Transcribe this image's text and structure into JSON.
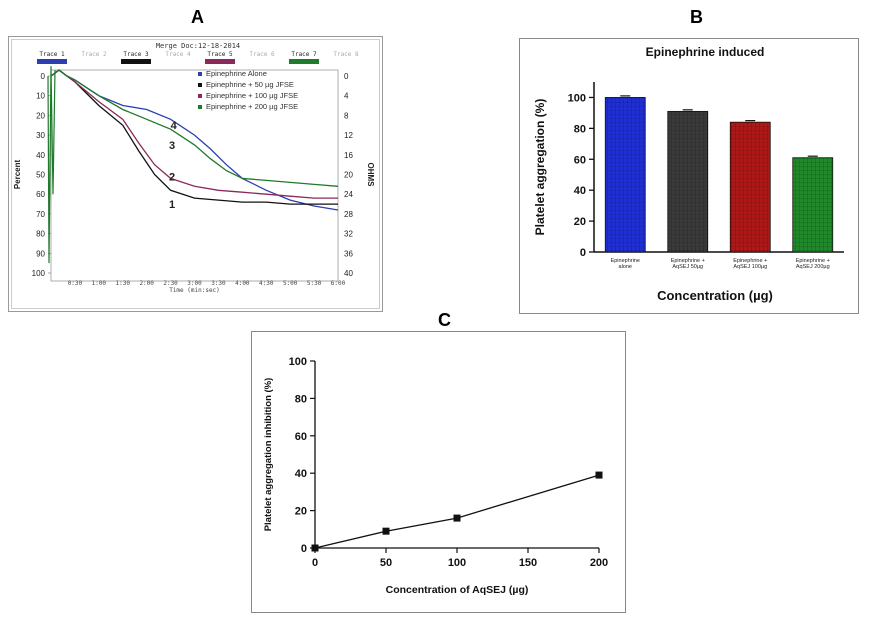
{
  "panels": {
    "a": {
      "letter": "A"
    },
    "b": {
      "letter": "B"
    },
    "c": {
      "letter": "C"
    }
  },
  "chart_data": [
    {
      "type": "line",
      "panel": "A",
      "header": "Merge Doc:12-18-2014",
      "trace_tabs": [
        {
          "label": "Trace 1",
          "active": true,
          "color": "#2b3fb0"
        },
        {
          "label": "Trace 2",
          "active": false,
          "color": ""
        },
        {
          "label": "Trace 3",
          "active": true,
          "color": "#111111"
        },
        {
          "label": "Trace 4",
          "active": false,
          "color": ""
        },
        {
          "label": "Trace 5",
          "active": true,
          "color": "#8a2a5a"
        },
        {
          "label": "Trace 6",
          "active": false,
          "color": ""
        },
        {
          "label": "Trace 7",
          "active": true,
          "color": "#1f7a2a"
        },
        {
          "label": "Trace 8",
          "active": false,
          "color": ""
        }
      ],
      "ylabel": "Percent",
      "ylabel_right": "OHMS",
      "xlabel": "Time (min:sec)",
      "y_ticks": [
        "0",
        "10",
        "20",
        "30",
        "40",
        "50",
        "60",
        "70",
        "80",
        "90",
        "100"
      ],
      "y_right_ticks": [
        "0",
        "4",
        "8",
        "12",
        "16",
        "20",
        "24",
        "28",
        "32",
        "36",
        "40"
      ],
      "x_ticks": [
        "0:30",
        "1:00",
        "1:30",
        "2:00",
        "2:30",
        "3:00",
        "3:30",
        "4:00",
        "4:30",
        "5:00",
        "5:30",
        "6:00"
      ],
      "xlim_sec": [
        0,
        360
      ],
      "ylim": [
        0,
        100
      ],
      "legend_position": "top-right",
      "series": [
        {
          "name": "Epinephrine Alone",
          "color": "#2b3fb0",
          "marker": "4",
          "t": [
            0,
            10,
            20,
            30,
            60,
            90,
            120,
            150,
            180,
            200,
            220,
            240,
            270,
            300,
            330,
            360
          ],
          "y": [
            0,
            -3,
            0,
            2,
            10,
            15,
            17,
            22,
            30,
            37,
            45,
            52,
            58,
            63,
            66,
            68
          ]
        },
        {
          "name": "Epinephrine + 50 µg JFSE",
          "color": "#111111",
          "marker": "1",
          "t": [
            0,
            10,
            20,
            30,
            60,
            90,
            110,
            130,
            150,
            180,
            210,
            240,
            270,
            300,
            330,
            360
          ],
          "y": [
            0,
            -3,
            0,
            3,
            15,
            25,
            38,
            50,
            58,
            62,
            63,
            64,
            64,
            65,
            65,
            65
          ]
        },
        {
          "name": "Epinephrine + 100 µg JFSE",
          "color": "#8a2a5a",
          "marker": "2",
          "t": [
            0,
            10,
            20,
            30,
            60,
            90,
            110,
            130,
            150,
            180,
            210,
            240,
            270,
            300,
            330,
            360
          ],
          "y": [
            0,
            -3,
            0,
            3,
            13,
            22,
            34,
            45,
            52,
            56,
            58,
            59,
            60,
            61,
            62,
            62
          ]
        },
        {
          "name": "Epinephrine + 200 µg JFSE",
          "color": "#1f7a2a",
          "marker": "3",
          "t": [
            0,
            10,
            20,
            30,
            60,
            90,
            120,
            150,
            180,
            200,
            220,
            240,
            270,
            300,
            330,
            360
          ],
          "y": [
            0,
            -3,
            0,
            2,
            10,
            17,
            22,
            27,
            35,
            42,
            48,
            52,
            53,
            54,
            55,
            56
          ]
        }
      ],
      "curve_labels": [
        {
          "text": "4",
          "t": 150,
          "y": 27
        },
        {
          "text": "3",
          "t": 148,
          "y": 37
        },
        {
          "text": "2",
          "t": 148,
          "y": 53
        },
        {
          "text": "1",
          "t": 148,
          "y": 67
        }
      ]
    },
    {
      "type": "bar",
      "panel": "B",
      "title": "Epinephrine induced",
      "ylabel": "Platelet aggregation (%)",
      "xlabel": "Concentration (µg)",
      "ylim": [
        0,
        110
      ],
      "y_ticks": [
        "0",
        "20",
        "40",
        "60",
        "80",
        "100"
      ],
      "categories": [
        {
          "line1": "Epinephrine",
          "line2": "alone"
        },
        {
          "line1": "Epinephrine +",
          "line2": "AqSEJ 50µg"
        },
        {
          "line1": "Epinephrine +",
          "line2": "AqSEJ 100µg"
        },
        {
          "line1": "Epinephrine +",
          "line2": "AqSEJ 200µg"
        }
      ],
      "values": [
        100,
        91,
        84,
        61
      ],
      "errors": [
        1,
        1,
        1,
        1
      ],
      "colors": [
        "#1f2fd8",
        "#3a3a3a",
        "#b01818",
        "#1f8a2a"
      ],
      "grid": false
    },
    {
      "type": "line",
      "panel": "C",
      "xlabel": "Concentration of AqSEJ (µg)",
      "ylabel": "Platelet aggregation inhibition (%)",
      "xlim": [
        0,
        200
      ],
      "ylim": [
        0,
        100
      ],
      "x_ticks": [
        "0",
        "50",
        "100",
        "150",
        "200"
      ],
      "y_ticks": [
        "0",
        "20",
        "40",
        "60",
        "80",
        "100"
      ],
      "x": [
        0,
        50,
        100,
        200
      ],
      "y": [
        0,
        9,
        16,
        39
      ],
      "marker": "square",
      "grid": false
    }
  ]
}
